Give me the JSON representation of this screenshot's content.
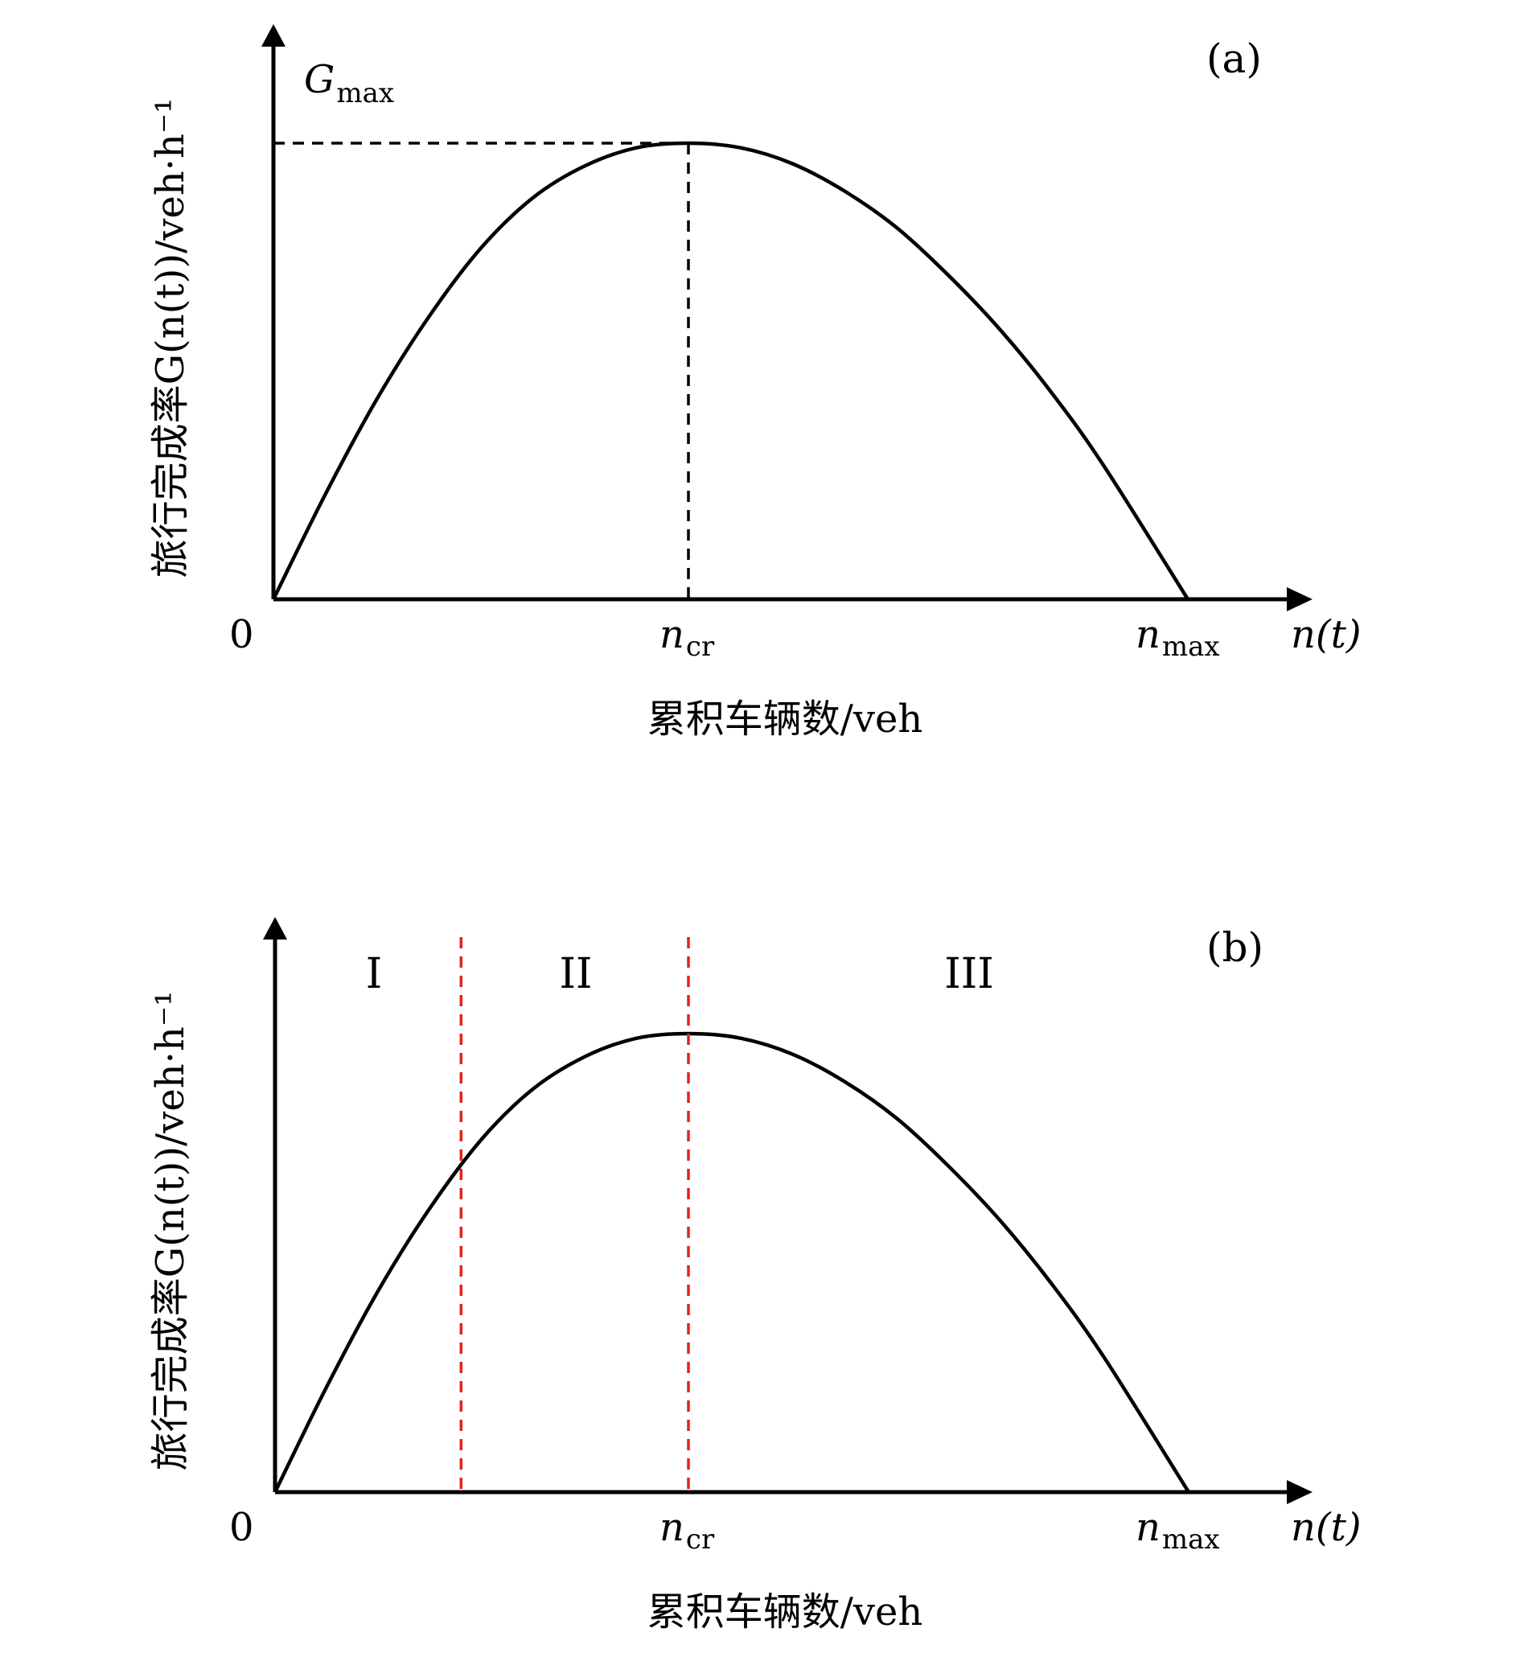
{
  "chart_data": [
    {
      "type": "line",
      "panel_label": "(a)",
      "xlabel": "累积车辆数/veh",
      "ylabel": "旅行完成率G(n(t))/veh·h⁻¹",
      "x_axis_symbol": "n(t)",
      "origin_label": "0",
      "x_ticks": [
        {
          "base": "n",
          "sub": "cr"
        },
        {
          "base": "n",
          "sub": "max"
        }
      ],
      "y_marker": {
        "base": "G",
        "sub": "max"
      },
      "annotations": [
        "dashed line from Gmax to peak",
        "dashed line from peak to ncr"
      ],
      "series": [
        {
          "curve": "concave",
          "x": [
            0,
            0.125,
            0.25,
            0.375,
            0.5,
            0.625,
            0.75,
            0.875,
            1.0,
            1.125,
            1.25,
            1.375,
            1.5,
            1.625,
            1.75,
            1.875,
            2.0,
            2.2
          ],
          "y": [
            0,
            0.23,
            0.44,
            0.62,
            0.77,
            0.88,
            0.95,
            0.99,
            1.0,
            0.99,
            0.955,
            0.895,
            0.815,
            0.71,
            0.59,
            0.45,
            0.29,
            0
          ]
        }
      ],
      "x_units": {
        "ncr": 1.0,
        "nmax": 2.2
      },
      "y_units": {
        "Gmax": 1.0
      },
      "grid": false
    },
    {
      "type": "line",
      "panel_label": "(b)",
      "xlabel": "累积车辆数/veh",
      "ylabel": "旅行完成率G(n(t))/veh·h⁻¹",
      "x_axis_symbol": "n(t)",
      "origin_label": "0",
      "x_ticks": [
        {
          "base": "n",
          "sub": "cr"
        },
        {
          "base": "n",
          "sub": "max"
        }
      ],
      "regions": [
        "I",
        "II",
        "III"
      ],
      "region_boundaries_x": [
        0.45,
        1.0
      ],
      "boundary_color": "#e8201c",
      "series": [
        {
          "curve": "concave",
          "x": [
            0,
            0.125,
            0.25,
            0.375,
            0.5,
            0.625,
            0.75,
            0.875,
            1.0,
            1.125,
            1.25,
            1.375,
            1.5,
            1.625,
            1.75,
            1.875,
            2.0,
            2.2
          ],
          "y": [
            0,
            0.23,
            0.44,
            0.62,
            0.77,
            0.88,
            0.95,
            0.99,
            1.0,
            0.99,
            0.955,
            0.895,
            0.815,
            0.71,
            0.59,
            0.45,
            0.29,
            0
          ]
        }
      ],
      "x_units": {
        "ncr": 1.0,
        "nmax": 2.2
      },
      "grid": false
    }
  ]
}
